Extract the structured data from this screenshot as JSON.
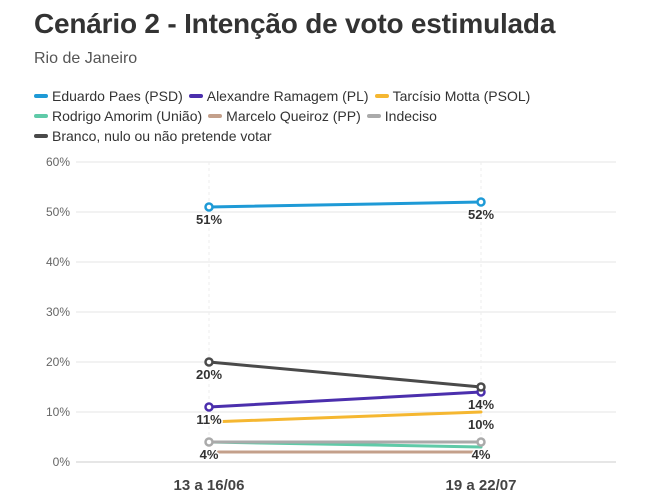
{
  "header": {
    "title": "Cenário 2 - Intenção de voto estimulada",
    "subtitle": "Rio de Janeiro"
  },
  "colors": {
    "grid": "#e6e6e6",
    "axis_text": "#666666",
    "label_text": "#333333"
  },
  "chart_data": {
    "type": "line",
    "title": "Cenário 2 - Intenção de voto estimulada",
    "subtitle": "Rio de Janeiro",
    "xlabel": "",
    "ylabel": "",
    "categories": [
      "13 a 16/06",
      "19 a 22/07"
    ],
    "ylim": [
      0,
      60
    ],
    "yticks": [
      0,
      10,
      20,
      30,
      40,
      50,
      60
    ],
    "ytick_labels": [
      "0%",
      "10%",
      "20%",
      "30%",
      "40%",
      "50%",
      "60%"
    ],
    "grid": true,
    "legend_position": "top-left",
    "series": [
      {
        "name": "Eduardo Paes (PSD)",
        "color": "#1e9ad6",
        "values": [
          51,
          52
        ],
        "labels": [
          "51%",
          "52%"
        ],
        "label_pos": [
          "below",
          "below"
        ]
      },
      {
        "name": "Alexandre Ramagem (PL)",
        "color": "#4b2fad",
        "values": [
          11,
          14
        ],
        "labels": [
          "11%",
          "14%"
        ],
        "label_pos": [
          "below",
          "below"
        ]
      },
      {
        "name": "Tarcísio Motta (PSOL)",
        "color": "#f5b731",
        "values": [
          8,
          10
        ],
        "labels": [
          "",
          "10%"
        ],
        "label_pos": [
          "below",
          "below"
        ]
      },
      {
        "name": "Rodrigo Amorim (União)",
        "color": "#5fcaa8",
        "values": [
          4,
          3
        ],
        "labels": [
          "",
          ""
        ],
        "label_pos": [
          "below",
          "below"
        ]
      },
      {
        "name": "Marcelo Queiroz (PP)",
        "color": "#c4a08b",
        "values": [
          2,
          2
        ],
        "labels": [
          "",
          ""
        ],
        "label_pos": [
          "below",
          "below"
        ]
      },
      {
        "name": "Indeciso",
        "color": "#aaaaaa",
        "values": [
          4,
          4
        ],
        "labels": [
          "4%",
          "4%"
        ],
        "label_pos": [
          "below",
          "below"
        ]
      },
      {
        "name": "Branco, nulo ou não pretende votar",
        "color": "#4a4a4a",
        "values": [
          20,
          15
        ],
        "labels": [
          "20%",
          ""
        ],
        "label_pos": [
          "below",
          "below"
        ]
      }
    ]
  }
}
